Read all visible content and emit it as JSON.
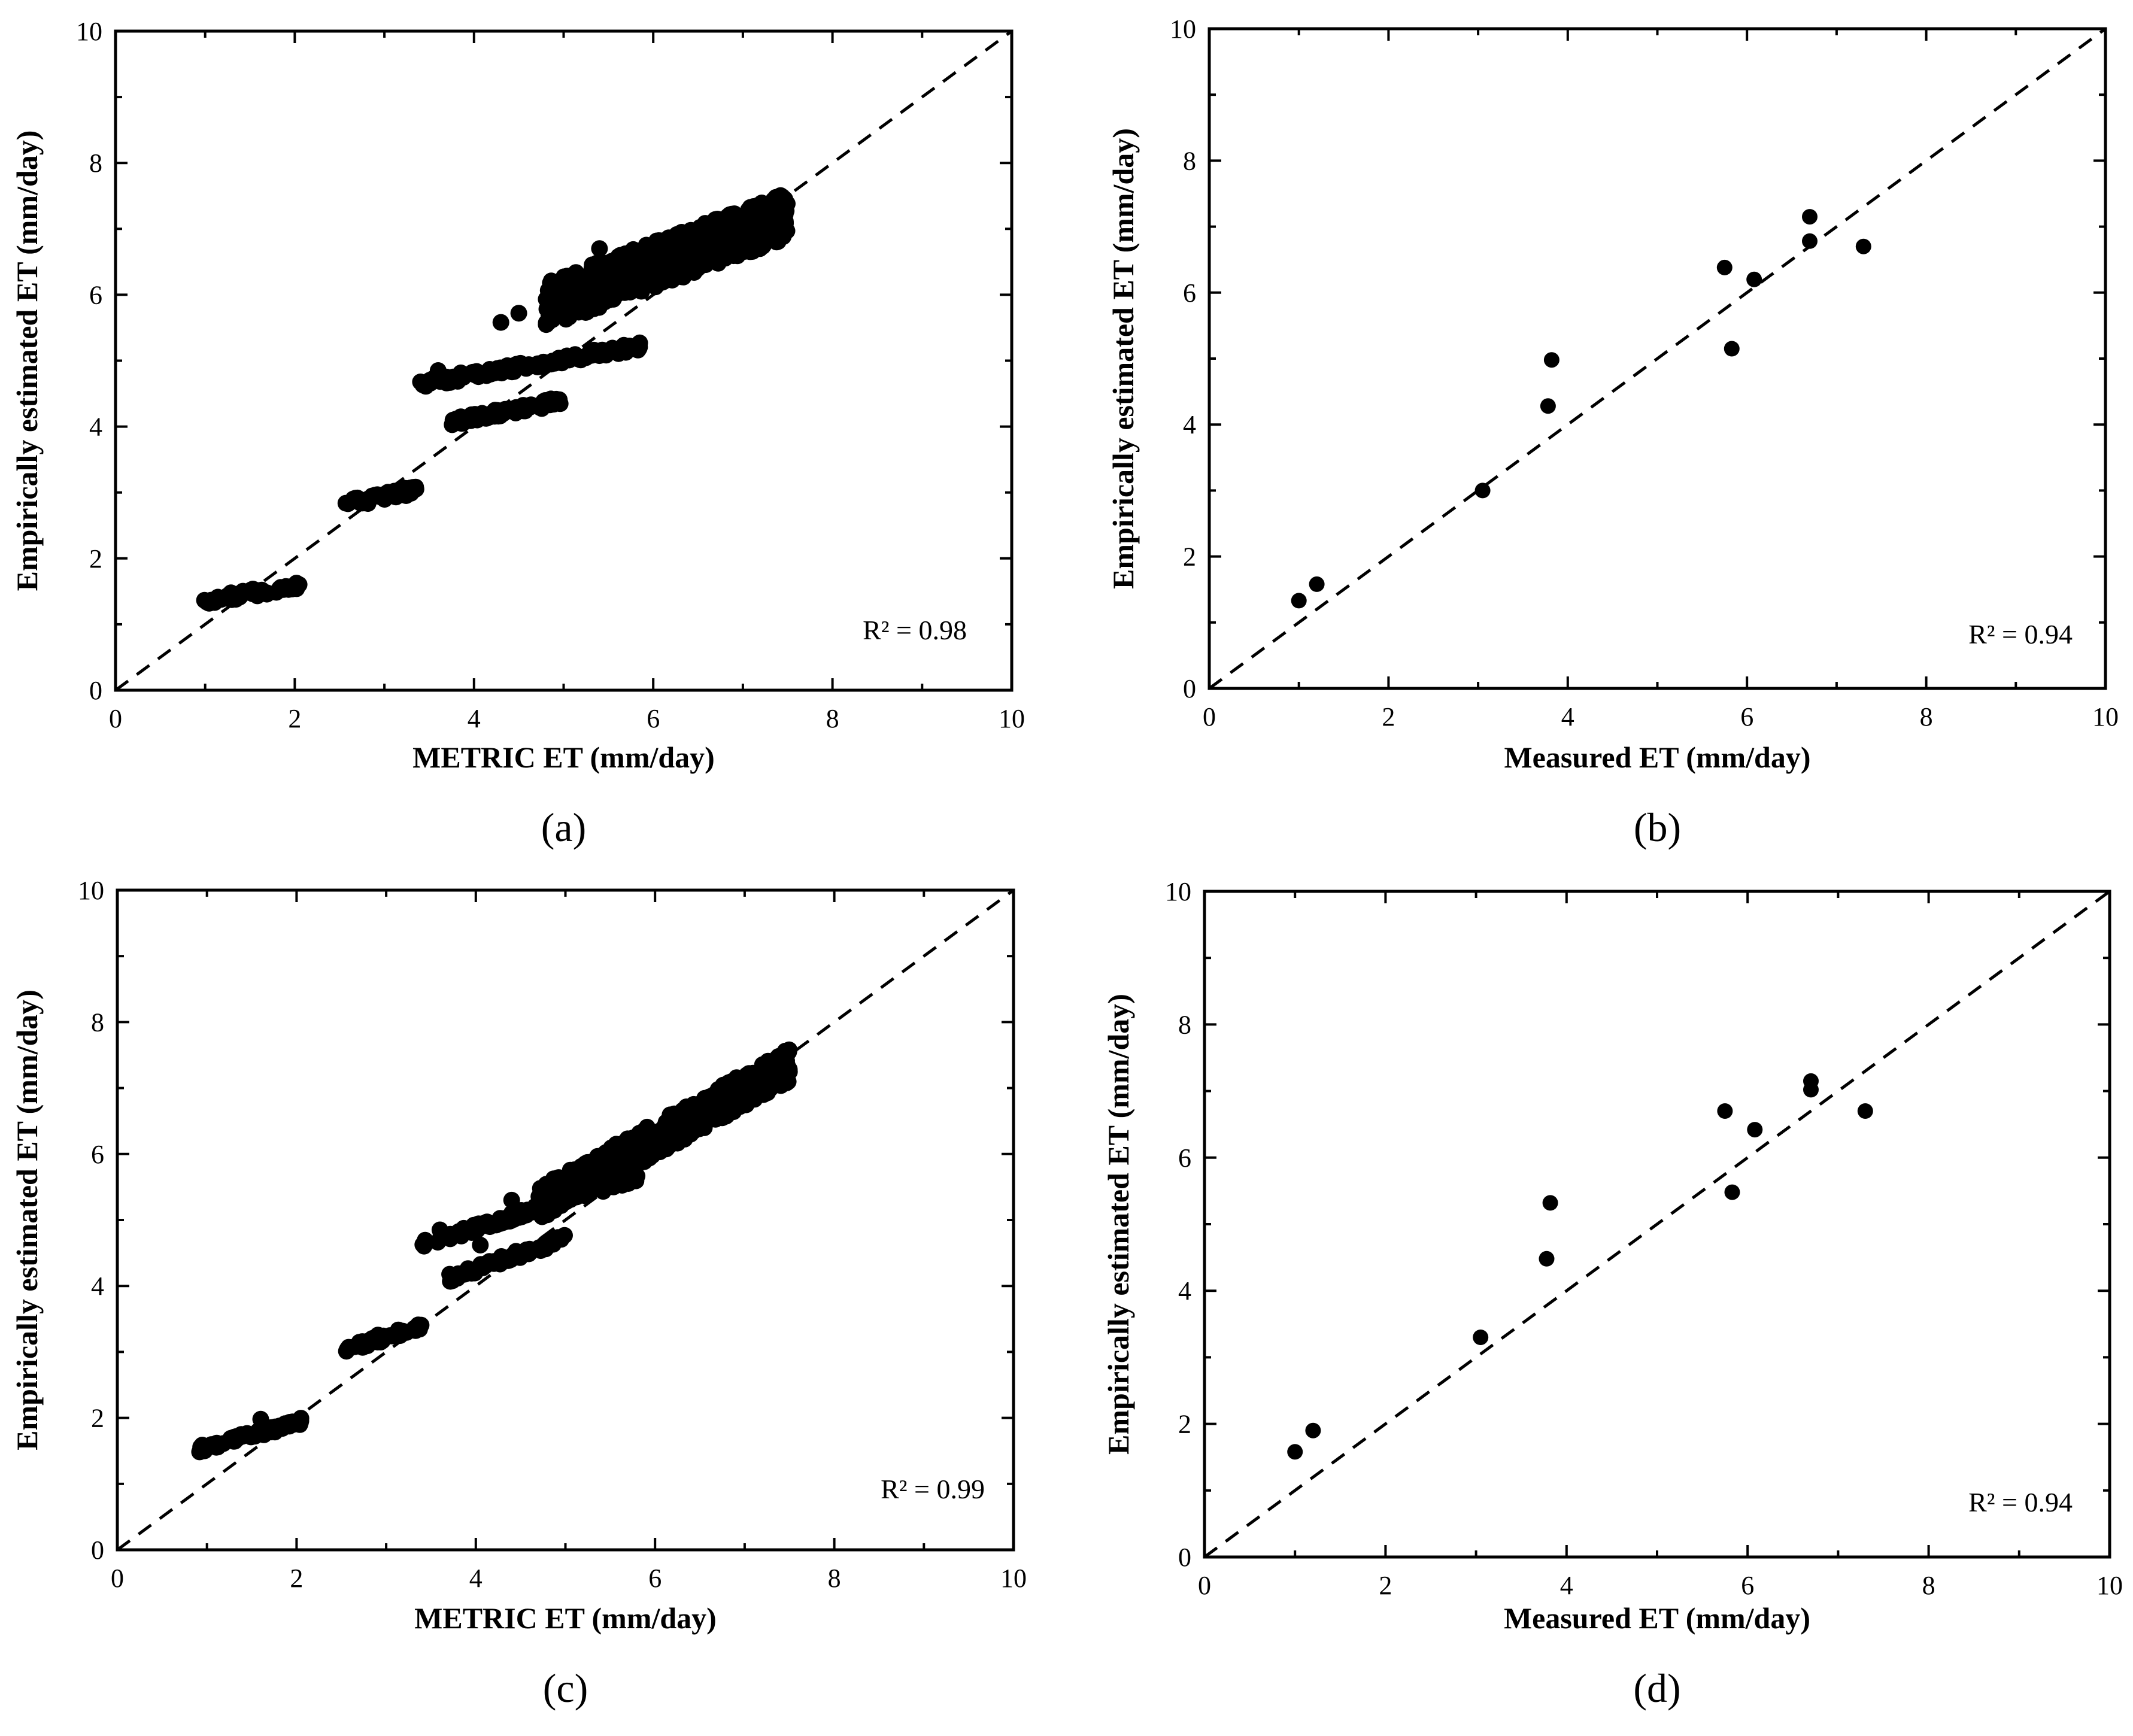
{
  "chart_data": [
    {
      "type": "scatter",
      "panel": "(a)",
      "xlabel": "METRIC ET (mm/day)",
      "ylabel": "Empirically estimated ET (mm/day)",
      "xlim": [
        0,
        10
      ],
      "ylim": [
        0,
        10
      ],
      "xticks": [
        "0",
        "2",
        "4",
        "6",
        "8",
        "10"
      ],
      "yticks": [
        "0",
        "2",
        "4",
        "6",
        "8",
        "10"
      ],
      "r2": "R² = 0.98",
      "reference_line": "1:1 dashed",
      "clusters": [
        {
          "x_range": [
            0.9,
            2.05
          ],
          "y_start": 1.33,
          "y_end": 1.6,
          "count": 55
        },
        {
          "x_range": [
            2.55,
            3.4
          ],
          "y_start": 2.82,
          "y_end": 3.05,
          "count": 45
        },
        {
          "x_range": [
            3.4,
            5.85
          ],
          "y_start": 4.65,
          "y_end": 5.22,
          "count": 110
        },
        {
          "x_range": [
            3.7,
            5.0
          ],
          "y_start": 4.05,
          "y_end": 4.4,
          "count": 70
        },
        {
          "x_range": [
            4.8,
            7.5
          ],
          "y_start": 5.85,
          "y_end": 7.2,
          "count": 600,
          "spread": 0.35
        }
      ],
      "points": [
        [
          4.3,
          5.58
        ],
        [
          4.5,
          5.72
        ],
        [
          5.4,
          6.7
        ],
        [
          3.6,
          4.85
        ]
      ]
    },
    {
      "type": "scatter",
      "panel": "(b)",
      "xlabel": "Measured ET (mm/day)",
      "ylabel": "Empirically estimated ET (mm/day)",
      "xlim": [
        0,
        10
      ],
      "ylim": [
        0,
        10
      ],
      "xticks": [
        "0",
        "2",
        "4",
        "6",
        "8",
        "10"
      ],
      "yticks": [
        "0",
        "2",
        "4",
        "6",
        "8",
        "10"
      ],
      "r2": "R² = 0.94",
      "reference_line": "1:1 dashed",
      "points": [
        [
          1.0,
          1.33
        ],
        [
          1.2,
          1.58
        ],
        [
          3.05,
          3.0
        ],
        [
          3.78,
          4.28
        ],
        [
          3.82,
          4.98
        ],
        [
          5.75,
          6.38
        ],
        [
          5.83,
          5.15
        ],
        [
          6.08,
          6.2
        ],
        [
          6.7,
          7.15
        ],
        [
          6.7,
          6.78
        ],
        [
          7.3,
          6.7
        ]
      ]
    },
    {
      "type": "scatter",
      "panel": "(c)",
      "xlabel": "METRIC ET (mm/day)",
      "ylabel": "Empirically estimated ET (mm/day)",
      "xlim": [
        0,
        10
      ],
      "ylim": [
        0,
        10
      ],
      "xticks": [
        "0",
        "2",
        "4",
        "6",
        "8",
        "10"
      ],
      "yticks": [
        "0",
        "2",
        "4",
        "6",
        "8",
        "10"
      ],
      "r2": "R² = 0.99",
      "reference_line": "1:1 dashed",
      "clusters": [
        {
          "x_range": [
            0.9,
            2.05
          ],
          "y_start": 1.52,
          "y_end": 1.95,
          "count": 60
        },
        {
          "x_range": [
            2.55,
            3.4
          ],
          "y_start": 3.05,
          "y_end": 3.4,
          "count": 45
        },
        {
          "x_range": [
            3.7,
            5.0
          ],
          "y_start": 4.12,
          "y_end": 4.72,
          "count": 70
        },
        {
          "x_range": [
            3.4,
            5.8
          ],
          "y_start": 4.62,
          "y_end": 5.65,
          "count": 120
        },
        {
          "x_range": [
            4.7,
            7.5
          ],
          "y_start": 5.25,
          "y_end": 7.35,
          "count": 600,
          "spread": 0.25
        }
      ],
      "points": [
        [
          1.6,
          1.98
        ],
        [
          3.6,
          4.85
        ],
        [
          4.05,
          4.62
        ],
        [
          4.4,
          5.3
        ]
      ]
    },
    {
      "type": "scatter",
      "panel": "(d)",
      "xlabel": "Measured ET (mm/day)",
      "ylabel": "Empirically estimated ET (mm/day)",
      "xlim": [
        0,
        10
      ],
      "ylim": [
        0,
        10
      ],
      "xticks": [
        "0",
        "2",
        "4",
        "6",
        "8",
        "10"
      ],
      "yticks": [
        "0",
        "2",
        "4",
        "6",
        "8",
        "10"
      ],
      "r2": "R² = 0.94",
      "reference_line": "1:1 dashed",
      "points": [
        [
          1.0,
          1.58
        ],
        [
          1.2,
          1.9
        ],
        [
          3.05,
          3.3
        ],
        [
          3.78,
          4.48
        ],
        [
          3.82,
          5.32
        ],
        [
          5.75,
          6.7
        ],
        [
          5.83,
          5.48
        ],
        [
          6.08,
          6.42
        ],
        [
          6.7,
          7.15
        ],
        [
          6.7,
          7.02
        ],
        [
          7.3,
          6.7
        ]
      ]
    }
  ]
}
